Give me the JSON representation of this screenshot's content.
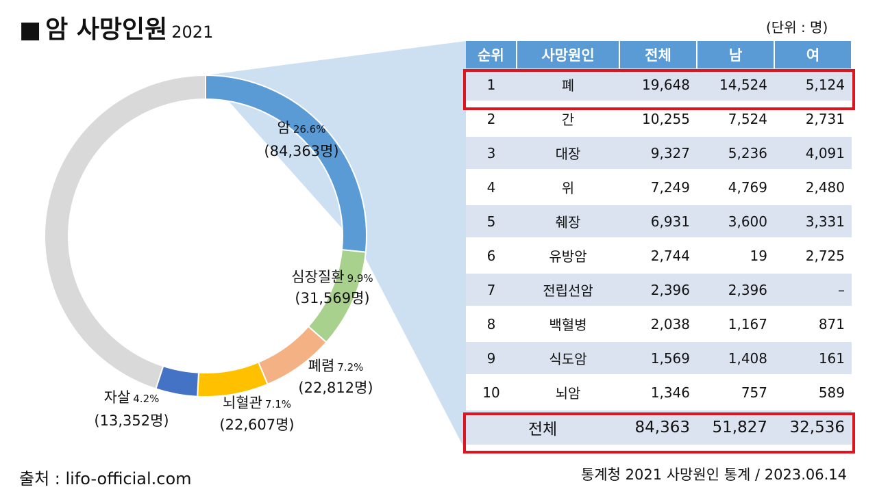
{
  "title": "암 사망인원",
  "title_year": "2021",
  "title_marker": "■",
  "unit": "(단위 : 명)",
  "source": "출처 : lifo-official.com",
  "footnote": "통계청 2021 사망원인 통계 / 2023.06.14",
  "colors": {
    "cancer": "#5b9bd5",
    "heart": "#a9d18e",
    "pneumonia": "#f4b183",
    "cerebro": "#ffc000",
    "suicide": "#4472c4",
    "other": "#d9d9d9",
    "table_header": "#5b9bd5",
    "table_stripe": "#dbe3f0",
    "highlight": "#e0141e"
  },
  "chart_data": {
    "type": "pie",
    "variant": "donut",
    "start": "12 o'clock, clockwise",
    "slices": [
      {
        "name": "암",
        "pct": 26.6,
        "pct_label": "26.6%",
        "value": 84363,
        "value_label": "(84,363명)",
        "color": "#5b9bd5"
      },
      {
        "name": "심장질환",
        "pct": 9.9,
        "pct_label": "9.9%",
        "value": 31569,
        "value_label": "(31,569명)",
        "color": "#a9d18e"
      },
      {
        "name": "폐렴",
        "pct": 7.2,
        "pct_label": "7.2%",
        "value": 22812,
        "value_label": "(22,812명)",
        "color": "#f4b183"
      },
      {
        "name": "뇌혈관",
        "pct": 7.1,
        "pct_label": "7.1%",
        "value": 22607,
        "value_label": "(22,607명)",
        "color": "#ffc000"
      },
      {
        "name": "자살",
        "pct": 4.2,
        "pct_label": "4.2%",
        "value": 13352,
        "value_label": "(13,352명)",
        "color": "#4472c4"
      },
      {
        "name": "",
        "pct": 45.0,
        "pct_label": "",
        "value": null,
        "value_label": "",
        "color": "#d9d9d9"
      }
    ]
  },
  "table": {
    "headers": [
      "순위",
      "사망원인",
      "전체",
      "남",
      "여"
    ],
    "rows": [
      [
        "1",
        "폐",
        "19,648",
        "14,524",
        "5,124"
      ],
      [
        "2",
        "간",
        "10,255",
        "7,524",
        "2,731"
      ],
      [
        "3",
        "대장",
        "9,327",
        "5,236",
        "4,091"
      ],
      [
        "4",
        "위",
        "7,249",
        "4,769",
        "2,480"
      ],
      [
        "5",
        "췌장",
        "6,931",
        "3,600",
        "3,331"
      ],
      [
        "6",
        "유방암",
        "2,744",
        "19",
        "2,725"
      ],
      [
        "7",
        "전립선암",
        "2,396",
        "2,396",
        "–"
      ],
      [
        "8",
        "백혈병",
        "2,038",
        "1,167",
        "871"
      ],
      [
        "9",
        "식도암",
        "1,569",
        "1,408",
        "161"
      ],
      [
        "10",
        "뇌암",
        "1,346",
        "757",
        "589"
      ]
    ],
    "total": {
      "label": "전체",
      "all": "84,363",
      "male": "51,827",
      "female": "32,536"
    }
  }
}
